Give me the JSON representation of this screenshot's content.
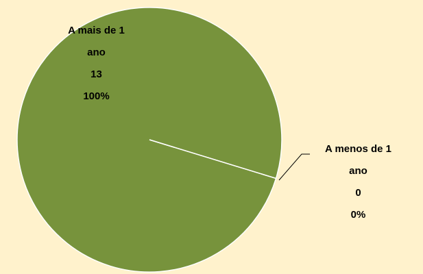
{
  "chart_data": {
    "type": "pie",
    "categories": [
      "A mais de 1 ano",
      "A menos de 1 ano"
    ],
    "values": [
      13,
      0
    ],
    "percent_labels": [
      "100%",
      "0%"
    ],
    "colors": [
      "#77933c",
      "#4f81bd"
    ]
  }
}
